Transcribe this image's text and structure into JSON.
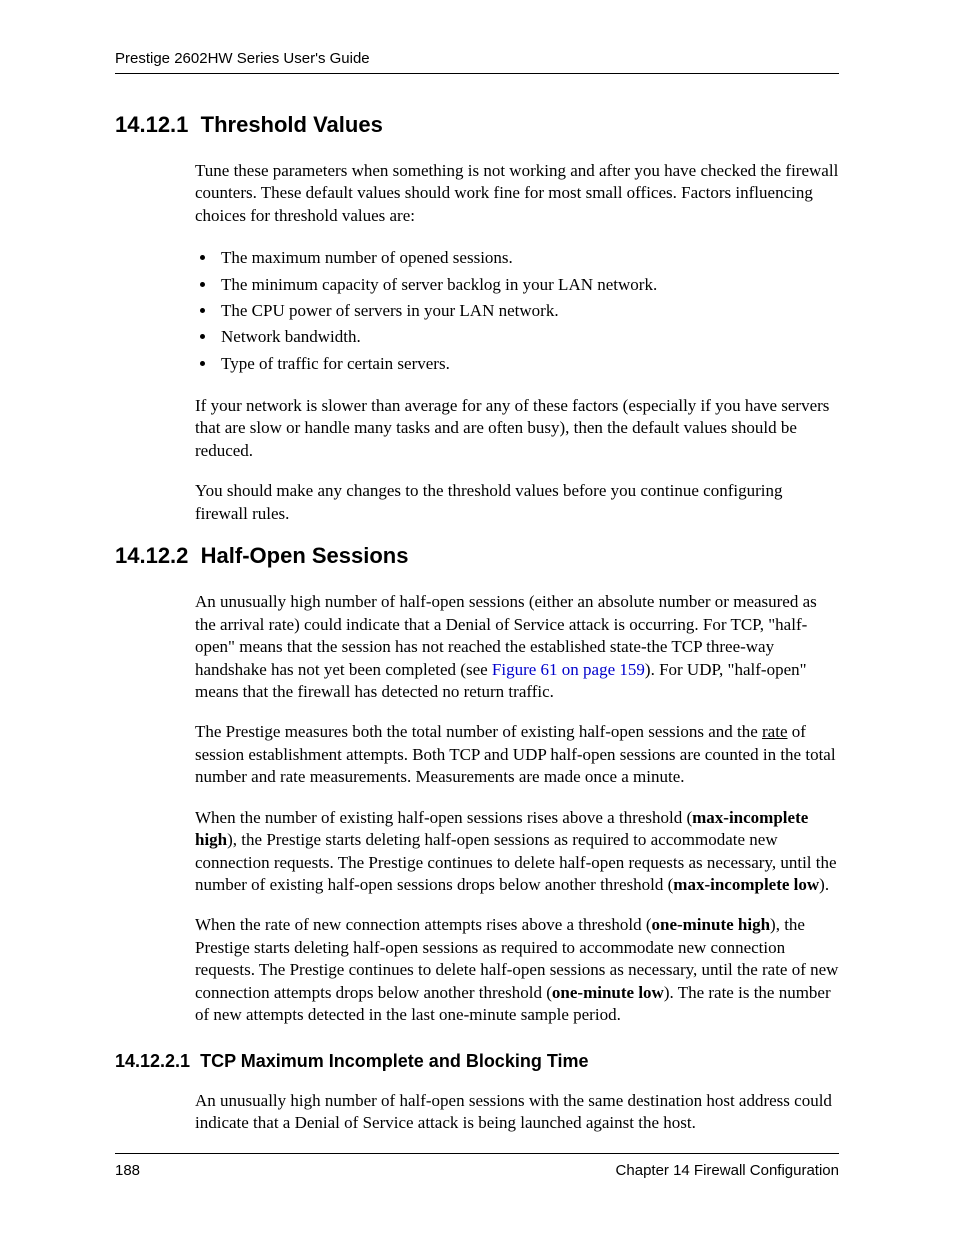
{
  "header": {
    "running_title": "Prestige 2602HW Series User's Guide"
  },
  "section1": {
    "number": "14.12.1",
    "title": "Threshold Values",
    "para1": "Tune these parameters when something is not working and after you have checked the firewall counters. These default values should work fine for most small offices. Factors influencing choices for threshold values are:",
    "bullets": [
      "The maximum number of opened sessions.",
      "The minimum capacity of server backlog in your LAN network.",
      "The CPU power of servers in your LAN network.",
      "Network bandwidth.",
      "Type of traffic for certain servers."
    ],
    "para2": "If your network is slower than average for any of these factors (especially if you have servers that are slow or handle many tasks and are often busy), then the default values should be reduced.",
    "para3": "You should make any changes to the threshold values before you continue configuring firewall rules."
  },
  "section2": {
    "number": "14.12.2",
    "title": "Half-Open Sessions",
    "para1_a": "An unusually high number of half-open sessions (either an absolute number or measured as the arrival rate) could indicate that a Denial of Service attack is occurring. For TCP, \"half-open\" means that the session has not reached the established state-the TCP three-way handshake has not yet been completed (see ",
    "para1_link": "Figure 61 on page 159",
    "para1_b": "). For UDP, \"half-open\" means that the firewall has detected no return traffic.",
    "para2_a": "The Prestige measures both the total number of existing half-open sessions and the ",
    "para2_u": "rate",
    "para2_b": " of session establishment attempts. Both TCP and UDP half-open sessions are counted in the total number and rate measurements. Measurements are made once a minute.",
    "para3_a": "When the number of existing half-open sessions rises above a threshold (",
    "para3_b1": "max-incomplete high",
    "para3_b": "), the Prestige starts deleting half-open sessions as required to accommodate new connection requests. The Prestige continues to delete half-open requests as necessary, until the number of existing half-open sessions drops below another threshold (",
    "para3_b2": "max-incomplete low",
    "para3_c": ").",
    "para4_a": "When the rate of new connection attempts rises above a threshold (",
    "para4_b1": "one-minute high",
    "para4_b": "), the Prestige starts deleting half-open sessions as required to accommodate new connection requests. The Prestige continues to delete half-open sessions as necessary, until the rate of new connection attempts drops below another threshold (",
    "para4_b2": "one-minute low",
    "para4_c": "). The rate is the number of new attempts detected in the last one-minute sample period."
  },
  "section3": {
    "number": "14.12.2.1",
    "title": "TCP Maximum Incomplete and Blocking Time",
    "para1": "An unusually high number of half-open sessions with the same destination host address could indicate that a Denial of Service attack is being launched against the host."
  },
  "footer": {
    "page_number": "188",
    "chapter": "Chapter 14 Firewall Configuration"
  }
}
